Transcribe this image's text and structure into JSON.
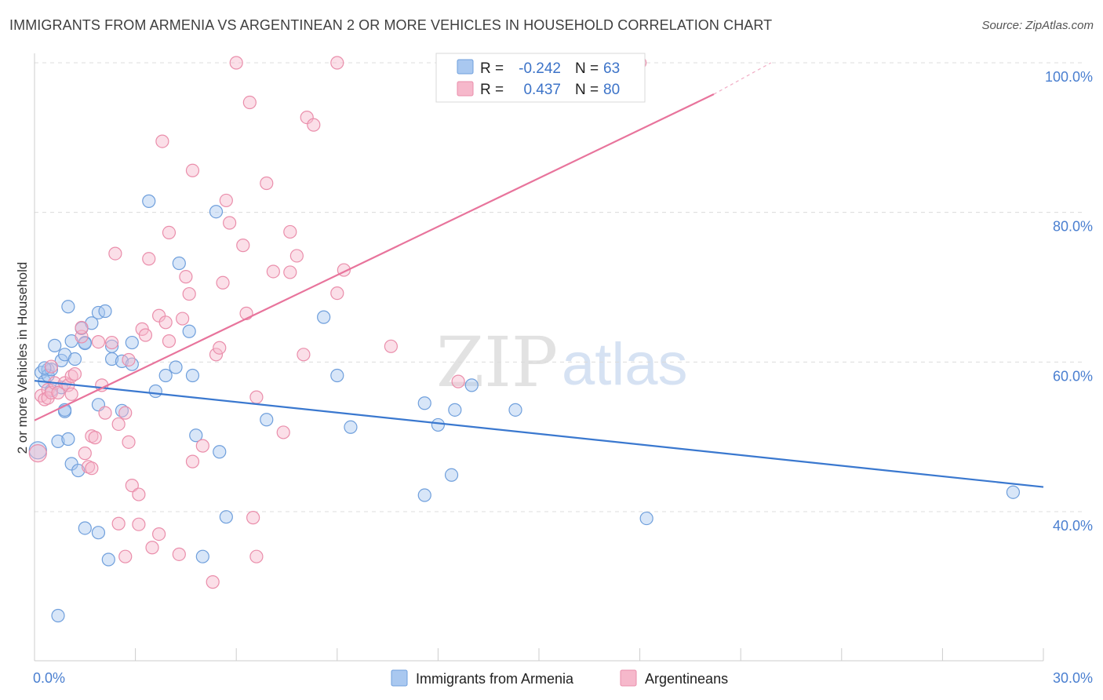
{
  "title": "IMMIGRANTS FROM ARMENIA VS ARGENTINEAN 2 OR MORE VEHICLES IN HOUSEHOLD CORRELATION CHART",
  "source": "Source: ZipAtlas.com",
  "watermark": {
    "zip": "ZIP",
    "atlas": "atlas"
  },
  "colors": {
    "armenia_fill": "#a9c8f0",
    "armenia_stroke": "#6f9fdc",
    "armenia_line": "#3a78cf",
    "argentinean_fill": "#f6b8cb",
    "argentinean_stroke": "#ea8eab",
    "argentinean_line": "#e8749c",
    "tick_label": "#4a7fd0",
    "grid": "#dcdcdc"
  },
  "stats_box": {
    "rows": [
      {
        "r_label": "R =",
        "r_value": "-0.242",
        "n_label": "N =",
        "n_value": "63"
      },
      {
        "r_label": "R =",
        "r_value": "0.437",
        "n_label": "N =",
        "n_value": "80"
      }
    ]
  },
  "chart_data": {
    "type": "scatter",
    "title": "IMMIGRANTS FROM ARMENIA VS ARGENTINEAN 2 OR MORE VEHICLES IN HOUSEHOLD CORRELATION CHART",
    "xlabel": "",
    "ylabel": "2 or more Vehicles in Household",
    "xlim": [
      0,
      30
    ],
    "ylim": [
      22,
      101
    ],
    "x_tick_labels": [
      {
        "value": 0,
        "label": "0.0%"
      },
      {
        "value": 30,
        "label": "30.0%"
      }
    ],
    "x_minor_ticks": [
      3,
      6,
      9,
      12,
      15,
      18,
      21,
      24,
      27,
      30
    ],
    "y_tick_labels": [
      {
        "value": 40,
        "label": "40.0%"
      },
      {
        "value": 60,
        "label": "60.0%"
      },
      {
        "value": 80,
        "label": "80.0%"
      },
      {
        "value": 100,
        "label": "100.0%"
      }
    ],
    "grid": true,
    "legend_position": "bottom-center",
    "series": [
      {
        "name": "Immigrants from Armenia",
        "r": -0.242,
        "n": 63,
        "trend": {
          "x": [
            0,
            30
          ],
          "y": [
            57.5,
            43.3
          ]
        },
        "points": [
          [
            0.1,
            48.2
          ],
          [
            0.2,
            58.6
          ],
          [
            0.3,
            57.4
          ],
          [
            0.4,
            59.0
          ],
          [
            0.4,
            58.2
          ],
          [
            0.5,
            59.0
          ],
          [
            0.5,
            56.2
          ],
          [
            0.6,
            62.2
          ],
          [
            0.7,
            49.4
          ],
          [
            0.8,
            60.2
          ],
          [
            0.8,
            56.6
          ],
          [
            0.9,
            61.0
          ],
          [
            0.9,
            53.4
          ],
          [
            0.9,
            53.6
          ],
          [
            1.0,
            67.4
          ],
          [
            1.0,
            49.7
          ],
          [
            1.1,
            62.8
          ],
          [
            1.1,
            46.4
          ],
          [
            1.2,
            60.4
          ],
          [
            1.3,
            45.5
          ],
          [
            1.4,
            64.5
          ],
          [
            1.5,
            62.6
          ],
          [
            1.5,
            62.5
          ],
          [
            1.5,
            37.8
          ],
          [
            1.7,
            65.2
          ],
          [
            1.9,
            54.3
          ],
          [
            1.9,
            37.2
          ],
          [
            1.9,
            66.6
          ],
          [
            2.1,
            66.8
          ],
          [
            2.2,
            33.6
          ],
          [
            2.3,
            60.4
          ],
          [
            2.3,
            62.1
          ],
          [
            2.6,
            60.1
          ],
          [
            2.6,
            53.5
          ],
          [
            2.9,
            59.7
          ],
          [
            2.9,
            62.6
          ],
          [
            3.4,
            81.5
          ],
          [
            3.6,
            56.1
          ],
          [
            3.9,
            58.2
          ],
          [
            4.2,
            59.3
          ],
          [
            4.3,
            73.2
          ],
          [
            4.6,
            64.1
          ],
          [
            4.7,
            58.2
          ],
          [
            4.8,
            50.2
          ],
          [
            5.0,
            34.0
          ],
          [
            5.4,
            80.1
          ],
          [
            5.5,
            48.0
          ],
          [
            5.7,
            39.3
          ],
          [
            6.9,
            52.3
          ],
          [
            8.6,
            66.0
          ],
          [
            9.0,
            58.2
          ],
          [
            9.4,
            51.3
          ],
          [
            11.6,
            54.5
          ],
          [
            11.6,
            42.2
          ],
          [
            12.0,
            51.6
          ],
          [
            12.4,
            44.9
          ],
          [
            12.5,
            53.6
          ],
          [
            13.0,
            56.9
          ],
          [
            14.3,
            53.6
          ],
          [
            18.2,
            39.1
          ],
          [
            29.1,
            42.6
          ],
          [
            0.7,
            26.1
          ],
          [
            0.3,
            59.2
          ]
        ]
      },
      {
        "name": "Argentineans",
        "r": 0.437,
        "n": 80,
        "trend": {
          "x": [
            0,
            20.2
          ],
          "y": [
            52.2,
            95.8
          ]
        },
        "trend_extension": {
          "x": [
            20.2,
            21.9
          ],
          "y": [
            95.8,
            100
          ]
        },
        "points": [
          [
            0.1,
            47.8
          ],
          [
            0.2,
            55.5
          ],
          [
            0.3,
            55.0
          ],
          [
            0.4,
            56.3
          ],
          [
            0.4,
            55.2
          ],
          [
            0.5,
            55.9
          ],
          [
            0.5,
            59.4
          ],
          [
            0.6,
            57.2
          ],
          [
            0.7,
            55.9
          ],
          [
            0.9,
            57.2
          ],
          [
            1.0,
            56.9
          ],
          [
            1.1,
            58.1
          ],
          [
            1.1,
            55.7
          ],
          [
            1.2,
            58.4
          ],
          [
            1.4,
            63.4
          ],
          [
            1.4,
            64.6
          ],
          [
            1.5,
            47.8
          ],
          [
            1.6,
            46.0
          ],
          [
            1.7,
            45.8
          ],
          [
            1.7,
            50.1
          ],
          [
            1.8,
            49.9
          ],
          [
            1.9,
            62.7
          ],
          [
            2.0,
            56.9
          ],
          [
            2.1,
            53.2
          ],
          [
            2.3,
            62.6
          ],
          [
            2.4,
            74.5
          ],
          [
            2.5,
            51.7
          ],
          [
            2.5,
            38.4
          ],
          [
            2.7,
            34.0
          ],
          [
            2.7,
            53.2
          ],
          [
            2.8,
            49.3
          ],
          [
            2.8,
            60.3
          ],
          [
            2.9,
            43.5
          ],
          [
            3.1,
            38.3
          ],
          [
            3.1,
            42.3
          ],
          [
            3.2,
            64.4
          ],
          [
            3.3,
            63.6
          ],
          [
            3.4,
            73.8
          ],
          [
            3.5,
            35.2
          ],
          [
            3.7,
            37.0
          ],
          [
            3.7,
            66.2
          ],
          [
            3.8,
            89.5
          ],
          [
            3.9,
            65.3
          ],
          [
            4.0,
            77.3
          ],
          [
            4.0,
            62.8
          ],
          [
            4.3,
            34.3
          ],
          [
            4.4,
            65.8
          ],
          [
            4.5,
            71.4
          ],
          [
            4.6,
            69.1
          ],
          [
            4.7,
            85.6
          ],
          [
            4.7,
            46.7
          ],
          [
            5.0,
            48.8
          ],
          [
            5.3,
            30.6
          ],
          [
            5.4,
            61.0
          ],
          [
            5.5,
            61.9
          ],
          [
            5.6,
            70.6
          ],
          [
            5.7,
            81.6
          ],
          [
            5.8,
            78.6
          ],
          [
            6.0,
            100.0
          ],
          [
            6.2,
            75.6
          ],
          [
            6.3,
            66.5
          ],
          [
            6.4,
            94.7
          ],
          [
            6.5,
            39.2
          ],
          [
            6.6,
            55.3
          ],
          [
            6.6,
            34.0
          ],
          [
            6.9,
            83.9
          ],
          [
            7.1,
            72.1
          ],
          [
            7.4,
            50.6
          ],
          [
            7.6,
            77.4
          ],
          [
            7.6,
            72.0
          ],
          [
            7.8,
            74.2
          ],
          [
            8.0,
            61.0
          ],
          [
            8.1,
            92.7
          ],
          [
            8.3,
            91.7
          ],
          [
            9.0,
            100.0
          ],
          [
            9.0,
            69.2
          ],
          [
            9.2,
            72.3
          ],
          [
            10.6,
            62.1
          ],
          [
            12.6,
            57.4
          ],
          [
            18.0,
            100.0
          ]
        ]
      }
    ]
  },
  "legend": [
    {
      "label": "Immigrants from Armenia"
    },
    {
      "label": "Argentineans"
    }
  ]
}
